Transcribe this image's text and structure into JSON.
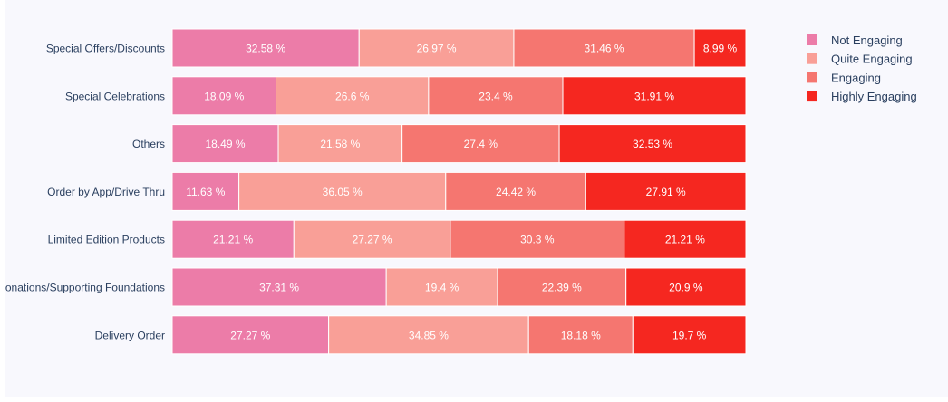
{
  "chart_data": {
    "type": "bar",
    "orientation": "horizontal",
    "stacked": true,
    "value_format": "%",
    "categories": [
      "Special Offers/Discounts",
      "Special Celebrations",
      "Others",
      "Order by App/Drive Thru",
      "Limited Edition Products",
      "Donations/Supporting Foundations",
      "Delivery Order"
    ],
    "series": [
      {
        "name": "Not Engaging",
        "color": "#ec7ca8",
        "values": [
          32.58,
          18.09,
          18.49,
          11.63,
          21.21,
          37.31,
          27.27
        ]
      },
      {
        "name": "Quite Engaging",
        "color": "#f99f97",
        "values": [
          26.97,
          26.6,
          21.58,
          36.05,
          27.27,
          19.4,
          34.85
        ]
      },
      {
        "name": "Engaging",
        "color": "#f57670",
        "values": [
          31.46,
          23.4,
          27.4,
          24.42,
          30.3,
          22.39,
          18.18
        ]
      },
      {
        "name": "Highly Engaging",
        "color": "#f52720",
        "values": [
          8.99,
          31.91,
          32.53,
          27.91,
          21.21,
          20.9,
          19.7
        ]
      }
    ],
    "xlim": [
      0,
      100
    ],
    "legend_position": "top-right",
    "grid": false
  }
}
